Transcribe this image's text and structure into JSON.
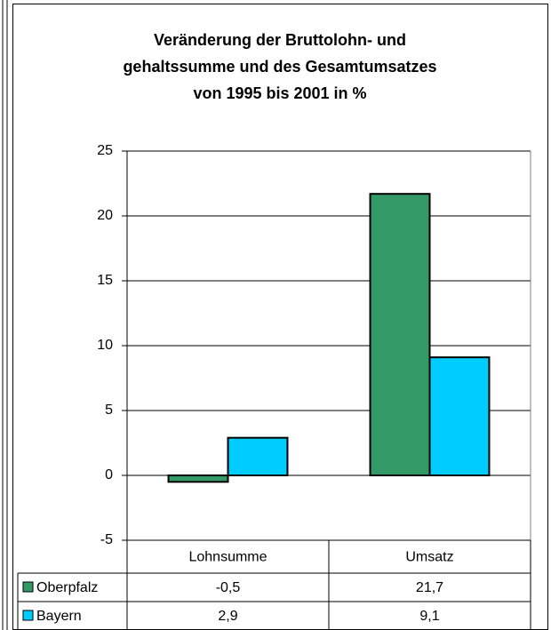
{
  "chart_data": {
    "type": "bar",
    "title": "Veränderung der Bruttolohn- und\ngehaltssumme und des Gesamtumsatzes\nvon 1995 bis 2001 in %",
    "categories": [
      "Lohnsumme",
      "Umsatz"
    ],
    "series": [
      {
        "name": "Oberpfalz",
        "color": "#339966",
        "values": [
          -0.5,
          21.7
        ],
        "value_labels": [
          "-0,5",
          "21,7"
        ]
      },
      {
        "name": "Bayern",
        "color": "#00ccff",
        "values": [
          2.9,
          9.1
        ],
        "value_labels": [
          "2,9",
          "9,1"
        ]
      }
    ],
    "ylim": [
      -5,
      25
    ],
    "yticks": [
      -5,
      0,
      5,
      10,
      15,
      20,
      25
    ],
    "grid": true,
    "legend": "table"
  }
}
